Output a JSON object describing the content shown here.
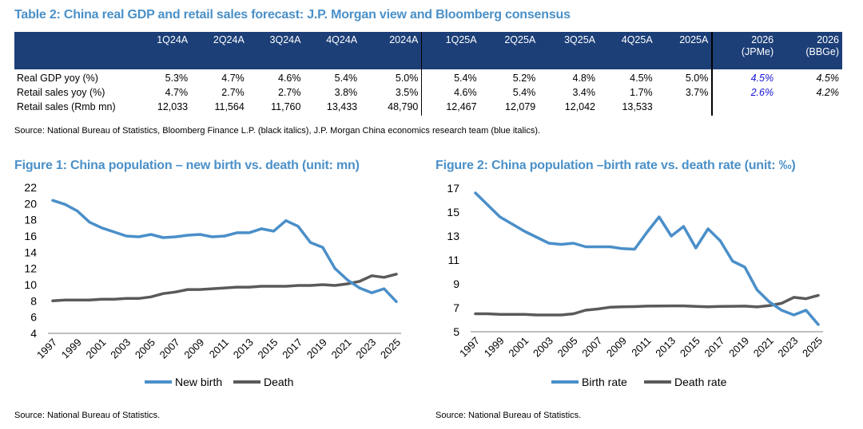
{
  "table": {
    "title": "Table 2: China real GDP and retail sales forecast: J.P. Morgan view and Bloomberg consensus",
    "headers": [
      {
        "label": "1Q24A",
        "sub": ""
      },
      {
        "label": "2Q24A",
        "sub": ""
      },
      {
        "label": "3Q24A",
        "sub": ""
      },
      {
        "label": "4Q24A",
        "sub": ""
      },
      {
        "label": "2024A",
        "sub": ""
      },
      {
        "label": "1Q25A",
        "sub": ""
      },
      {
        "label": "2Q25A",
        "sub": ""
      },
      {
        "label": "3Q25A",
        "sub": ""
      },
      {
        "label": "4Q25A",
        "sub": ""
      },
      {
        "label": "2025A",
        "sub": ""
      },
      {
        "label": "2026",
        "sub": "(JPMe)"
      },
      {
        "label": "2026",
        "sub": "(BBGe)"
      }
    ],
    "rows": [
      {
        "label": "Real GDP yoy (%)",
        "values": [
          "5.3%",
          "4.7%",
          "4.6%",
          "5.4%",
          "5.0%",
          "5.4%",
          "5.2%",
          "4.8%",
          "4.5%",
          "5.0%",
          "4.5%",
          "4.5%"
        ]
      },
      {
        "label": "Retail sales yoy (%)",
        "values": [
          "4.7%",
          "2.7%",
          "2.7%",
          "3.8%",
          "3.5%",
          "4.6%",
          "5.4%",
          "3.4%",
          "1.7%",
          "3.7%",
          "2.6%",
          "4.2%"
        ]
      },
      {
        "label": "Retail sales (Rmb mn)",
        "values": [
          "12,033",
          "11,564",
          "11,760",
          "13,433",
          "48,790",
          "12,467",
          "12,079",
          "12,042",
          "13,533",
          "",
          "",
          ""
        ]
      }
    ],
    "source": "Source: National Bureau of Statistics, Bloomberg Finance L.P. (black italics), J.P. Morgan China economics research team (blue italics).",
    "colors": {
      "header_bg": "#1c3f78",
      "jpm_blue": "#1414d6",
      "title": "#4a90c8"
    }
  },
  "chart_data": [
    {
      "type": "line",
      "title": "Figure 1: China population – new birth vs. death (unit: mn)",
      "x": [
        1997,
        1998,
        1999,
        2000,
        2001,
        2002,
        2003,
        2004,
        2005,
        2006,
        2007,
        2008,
        2009,
        2010,
        2011,
        2012,
        2013,
        2014,
        2015,
        2016,
        2017,
        2018,
        2019,
        2020,
        2021,
        2022,
        2023,
        2024,
        2025
      ],
      "series": [
        {
          "name": "New birth",
          "color": "#4a8fc9",
          "values": [
            20.4,
            19.9,
            19.1,
            17.7,
            17.0,
            16.5,
            16.0,
            15.9,
            16.2,
            15.8,
            15.9,
            16.1,
            16.2,
            15.9,
            16.0,
            16.4,
            16.4,
            16.9,
            16.6,
            17.9,
            17.2,
            15.2,
            14.6,
            12.0,
            10.6,
            9.6,
            9.0,
            9.5,
            7.9
          ]
        },
        {
          "name": "Death",
          "color": "#5a5a5a",
          "values": [
            8.0,
            8.1,
            8.1,
            8.1,
            8.2,
            8.2,
            8.3,
            8.3,
            8.5,
            8.9,
            9.1,
            9.4,
            9.4,
            9.5,
            9.6,
            9.7,
            9.7,
            9.8,
            9.8,
            9.8,
            9.9,
            9.9,
            10.0,
            9.9,
            10.1,
            10.4,
            11.1,
            10.9,
            11.3
          ]
        }
      ],
      "xticks": [
        "1997",
        "1999",
        "2001",
        "2003",
        "2005",
        "2007",
        "2009",
        "2011",
        "2013",
        "2015",
        "2017",
        "2019",
        "2021",
        "2023",
        "2025"
      ],
      "yticks": [
        4,
        6,
        8,
        10,
        12,
        14,
        16,
        18,
        20,
        22
      ],
      "ylim": [
        4,
        22
      ],
      "xlabel": "",
      "ylabel": "",
      "legend": "bottom",
      "source": "Source: National Bureau of Statistics."
    },
    {
      "type": "line",
      "title": "Figure 2: China population –birth rate vs. death rate (unit: ‰)",
      "x": [
        1997,
        1998,
        1999,
        2000,
        2001,
        2002,
        2003,
        2004,
        2005,
        2006,
        2007,
        2008,
        2009,
        2010,
        2011,
        2012,
        2013,
        2014,
        2015,
        2016,
        2017,
        2018,
        2019,
        2020,
        2021,
        2022,
        2023,
        2024,
        2025
      ],
      "series": [
        {
          "name": "Birth rate",
          "color": "#4a8fc9",
          "values": [
            16.6,
            15.6,
            14.6,
            14.0,
            13.4,
            12.9,
            12.4,
            12.3,
            12.4,
            12.1,
            12.1,
            12.1,
            11.95,
            11.9,
            13.3,
            14.6,
            13.0,
            13.8,
            12.0,
            13.6,
            12.6,
            10.9,
            10.4,
            8.5,
            7.5,
            6.8,
            6.4,
            6.8,
            5.6
          ]
        },
        {
          "name": "Death rate",
          "color": "#5a5a5a",
          "values": [
            6.5,
            6.5,
            6.45,
            6.45,
            6.45,
            6.4,
            6.4,
            6.4,
            6.5,
            6.8,
            6.9,
            7.05,
            7.08,
            7.1,
            7.14,
            7.15,
            7.16,
            7.16,
            7.11,
            7.09,
            7.11,
            7.13,
            7.14,
            7.07,
            7.18,
            7.37,
            7.87,
            7.76,
            8.04
          ]
        }
      ],
      "xticks": [
        "1997",
        "1999",
        "2001",
        "2003",
        "2005",
        "2007",
        "2009",
        "2011",
        "2013",
        "2015",
        "2017",
        "2019",
        "2021",
        "2023",
        "2025"
      ],
      "yticks": [
        5,
        7,
        9,
        11,
        13,
        15,
        17
      ],
      "ylim": [
        5,
        17
      ],
      "xlabel": "",
      "ylabel": "",
      "legend": "bottom",
      "source": "Source: National Bureau of Statistics."
    }
  ]
}
